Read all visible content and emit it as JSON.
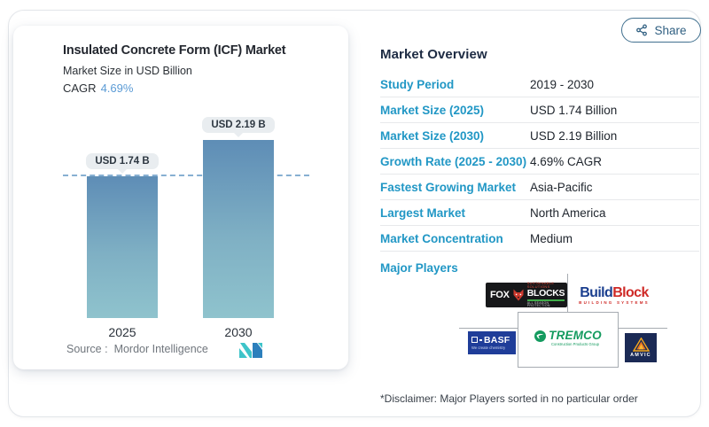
{
  "share": {
    "label": "Share"
  },
  "chart": {
    "title": "Insulated Concrete Form (ICF) Market",
    "subtitle": "Market Size in USD Billion",
    "cagr_label": "CAGR",
    "cagr_value": "4.69%",
    "source_label": "Source :",
    "source_value": "Mordor Intelligence"
  },
  "chart_data": {
    "type": "bar",
    "title": "Insulated Concrete Form (ICF) Market",
    "ylabel": "Market Size in USD Billion",
    "categories": [
      "2025",
      "2030"
    ],
    "values": [
      1.74,
      2.19
    ],
    "value_labels": [
      "USD 1.74 B",
      "USD 2.19 B"
    ],
    "ylim": [
      0,
      2.5
    ],
    "baseline_dashed_at": 1.74,
    "grid": false,
    "bar_color_top": "#5e8db6",
    "bar_color_bottom": "#8fc3cd"
  },
  "overview": {
    "heading": "Market Overview",
    "rows": [
      {
        "label": "Study Period",
        "value": "2019 - 2030"
      },
      {
        "label": "Market Size (2025)",
        "value": "USD 1.74 Billion"
      },
      {
        "label": "Market Size (2030)",
        "value": "USD 2.19 Billion"
      },
      {
        "label": "Growth Rate (2025 - 2030)",
        "value": "4.69% CAGR"
      },
      {
        "label": "Fastest Growing Market",
        "value": "Asia-Pacific"
      },
      {
        "label": "Largest Market",
        "value": "North America"
      },
      {
        "label": "Market Concentration",
        "value": "Medium"
      }
    ],
    "major_players_label": "Major Players",
    "disclaimer": "*Disclaimer: Major Players sorted in no particular order"
  },
  "logos": {
    "foxblocks": {
      "word1": "FOX",
      "word2": "BLOCKS",
      "top": "SUSTAINABLE SOLUTIONS",
      "bottom": "ALL SEASON PROTECTION"
    },
    "buildblock": {
      "word1": "Build",
      "word2": "Block",
      "sub": "BUILDING SYSTEMS"
    },
    "basf": {
      "name": "BASF",
      "tagline": "We create chemistry"
    },
    "tremco": {
      "name": "TREMCO",
      "sub": "Construction Products Group"
    },
    "amvic": {
      "name": "AMVIC"
    }
  },
  "colors": {
    "accent_teal": "#2197c5",
    "heading_navy": "#1d2b43",
    "cagr_blue": "#5b9bd5",
    "dashed_line": "#87b0d2",
    "share_border": "#41708f"
  }
}
